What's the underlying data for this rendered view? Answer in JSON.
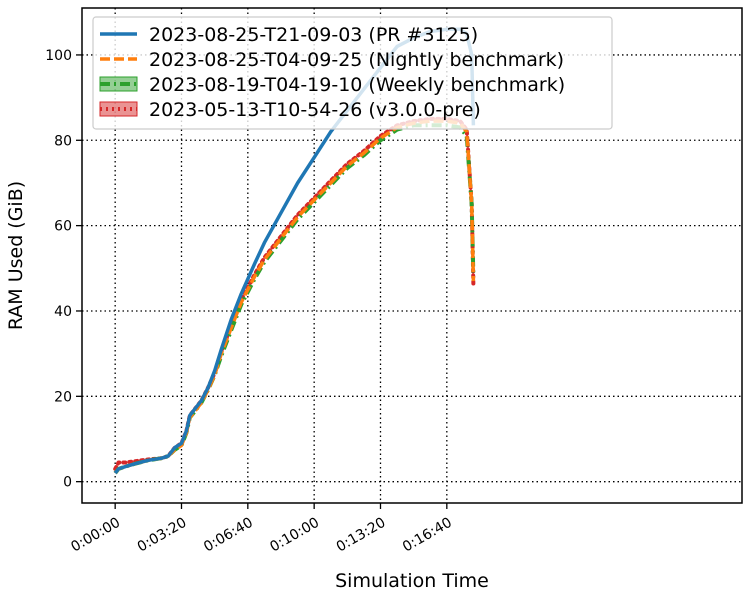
{
  "chart_data": {
    "type": "line",
    "xlabel": "Simulation Time",
    "ylabel": "RAM Used (GiB)",
    "xlim": [
      -100,
      1890
    ],
    "ylim": [
      -5,
      111
    ],
    "x_ticks": [
      {
        "value": 0,
        "label": "0:00:00"
      },
      {
        "value": 200,
        "label": "0:03:20"
      },
      {
        "value": 400,
        "label": "0:06:40"
      },
      {
        "value": 600,
        "label": "0:10:00"
      },
      {
        "value": 800,
        "label": "0:13:20"
      },
      {
        "value": 1000,
        "label": "0:16:40"
      }
    ],
    "y_ticks": [
      {
        "value": 0,
        "label": "0"
      },
      {
        "value": 20,
        "label": "20"
      },
      {
        "value": 40,
        "label": "40"
      },
      {
        "value": 60,
        "label": "60"
      },
      {
        "value": 80,
        "label": "80"
      },
      {
        "value": 100,
        "label": "100"
      }
    ],
    "grid": true,
    "legend_position": "top-left",
    "series": [
      {
        "name": "2023-08-25-T21-09-03 (PR #3125)",
        "color": "#1f77b4",
        "style": "solid",
        "x": [
          0,
          10,
          30,
          60,
          100,
          140,
          160,
          180,
          200,
          215,
          225,
          240,
          260,
          280,
          300,
          320,
          350,
          380,
          420,
          450,
          500,
          550,
          600,
          650,
          700,
          750,
          800,
          850,
          900,
          950,
          1000,
          1040,
          1060,
          1075,
          1080
        ],
        "y": [
          2,
          3,
          3.5,
          4.2,
          5,
          5.5,
          6,
          8,
          9,
          12,
          15.5,
          17,
          19,
          22,
          26,
          31,
          38,
          44,
          51,
          56,
          63,
          70,
          76,
          82,
          87,
          92,
          97,
          102,
          104,
          105.5,
          106,
          106,
          105,
          100,
          83.5
        ]
      },
      {
        "name": "2023-08-25-T04-09-25 (Nightly benchmark)",
        "color": "#ff7f0e",
        "style": "dashed",
        "x": [
          0,
          10,
          30,
          60,
          100,
          140,
          160,
          180,
          200,
          215,
          225,
          240,
          260,
          280,
          300,
          320,
          350,
          380,
          420,
          450,
          500,
          550,
          600,
          650,
          700,
          750,
          800,
          850,
          900,
          950,
          1000,
          1040,
          1060,
          1075,
          1080
        ],
        "y": [
          2,
          3,
          3.5,
          4.2,
          5,
          5.5,
          6,
          7.5,
          8.5,
          11.5,
          15,
          16.5,
          18.5,
          21.5,
          25,
          30,
          36,
          42,
          48,
          52,
          57,
          62,
          66,
          70,
          74,
          77,
          80.5,
          83,
          84,
          84.5,
          84.5,
          84,
          82,
          65,
          47
        ]
      },
      {
        "name": "2023-08-19-T04-19-10 (Weekly benchmark)",
        "color": "#2ca02c",
        "style": "dashdot",
        "x": [
          0,
          10,
          30,
          60,
          100,
          140,
          160,
          180,
          200,
          215,
          225,
          240,
          260,
          280,
          300,
          320,
          350,
          380,
          420,
          450,
          500,
          550,
          600,
          650,
          700,
          750,
          800,
          850,
          900,
          950,
          1000,
          1040,
          1060,
          1075,
          1080
        ],
        "y": [
          2,
          3,
          3.5,
          4.2,
          5,
          5.5,
          6,
          7.5,
          8.5,
          11.5,
          15,
          16.5,
          18.5,
          21.5,
          25,
          29.5,
          35.5,
          41.5,
          47.5,
          51.5,
          56.5,
          61.5,
          65.5,
          69.5,
          73.5,
          76.5,
          80,
          82.5,
          83.5,
          83.5,
          83.5,
          83,
          81,
          65,
          48
        ]
      },
      {
        "name": "2023-05-13-T10-54-26 (v3.0.0-pre)",
        "color": "#d62728",
        "style": "dotted",
        "x": [
          0,
          10,
          30,
          60,
          100,
          140,
          160,
          180,
          200,
          215,
          225,
          240,
          260,
          280,
          300,
          320,
          350,
          380,
          420,
          450,
          500,
          550,
          600,
          650,
          700,
          750,
          800,
          850,
          900,
          950,
          1000,
          1040,
          1060,
          1075,
          1080
        ],
        "y": [
          3,
          4.5,
          4.5,
          4.8,
          5.2,
          5.5,
          6,
          8,
          9,
          12,
          15.5,
          17,
          19,
          22,
          25.5,
          30.5,
          36.5,
          42.5,
          48.5,
          52.5,
          57.5,
          62.5,
          66.5,
          70.5,
          74.5,
          77.5,
          81,
          83.5,
          84.5,
          85,
          85,
          84.5,
          82.5,
          65,
          46
        ]
      }
    ]
  }
}
